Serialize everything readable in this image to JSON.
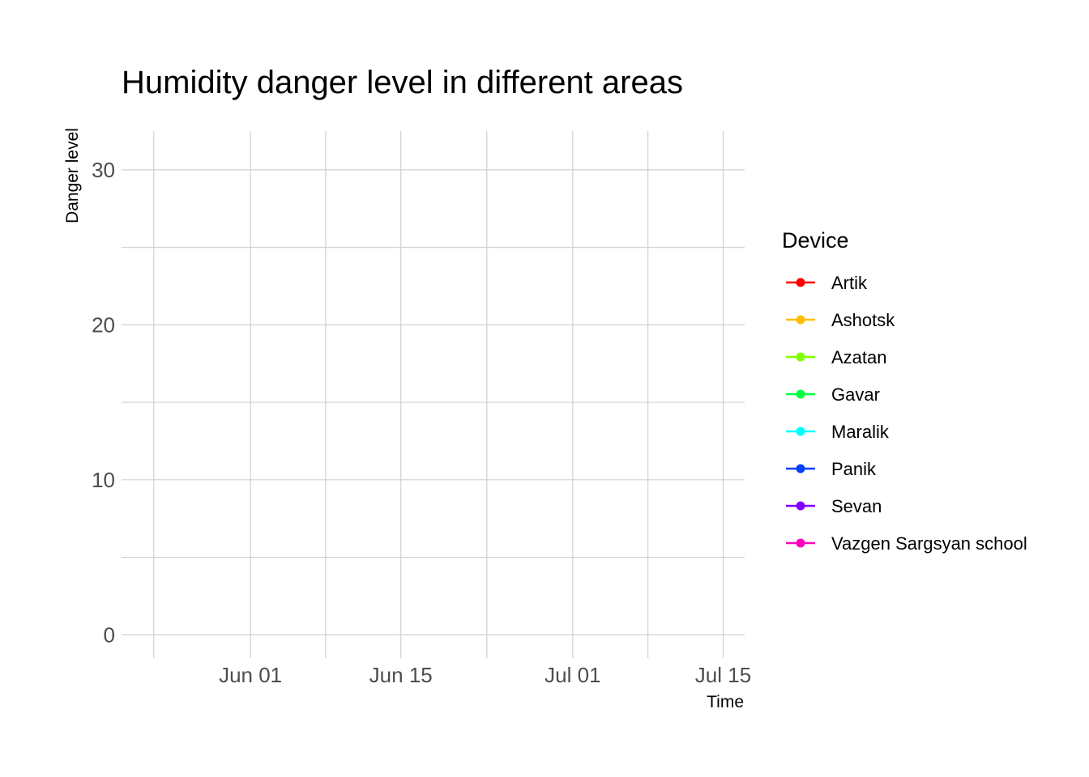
{
  "chart_data": {
    "type": "line",
    "title": "Humidity danger level in different areas",
    "xlabel": "Time",
    "ylabel": "Danger level",
    "x_ticks": [
      {
        "date": "2023-06-01",
        "label": "Jun 01"
      },
      {
        "date": "2023-06-15",
        "label": "Jun 15"
      },
      {
        "date": "2023-07-01",
        "label": "Jul 01"
      },
      {
        "date": "2023-07-15",
        "label": "Jul 15"
      }
    ],
    "x_minor_ticks": [
      "2023-05-23",
      "2023-06-08",
      "2023-06-23",
      "2023-07-08"
    ],
    "xlim": [
      "2023-05-20",
      "2023-07-17"
    ],
    "y_ticks": [
      0,
      10,
      20,
      30
    ],
    "y_minor_ticks": [
      5,
      15,
      25
    ],
    "ylim": [
      -1.5,
      32.5
    ],
    "grid": true,
    "legend": {
      "title": "Device",
      "placement": "right"
    },
    "series": [
      {
        "name": "Artik",
        "color": "#ff0000",
        "values": []
      },
      {
        "name": "Ashotsk",
        "color": "#ffbf00",
        "values": []
      },
      {
        "name": "Azatan",
        "color": "#80ff00",
        "values": []
      },
      {
        "name": "Gavar",
        "color": "#00ff40",
        "values": []
      },
      {
        "name": "Maralik",
        "color": "#00ffff",
        "values": []
      },
      {
        "name": "Panik",
        "color": "#0040ff",
        "values": []
      },
      {
        "name": "Sevan",
        "color": "#8000ff",
        "values": []
      },
      {
        "name": "Vazgen Sargsyan school",
        "color": "#ff00bf",
        "values": []
      }
    ]
  }
}
